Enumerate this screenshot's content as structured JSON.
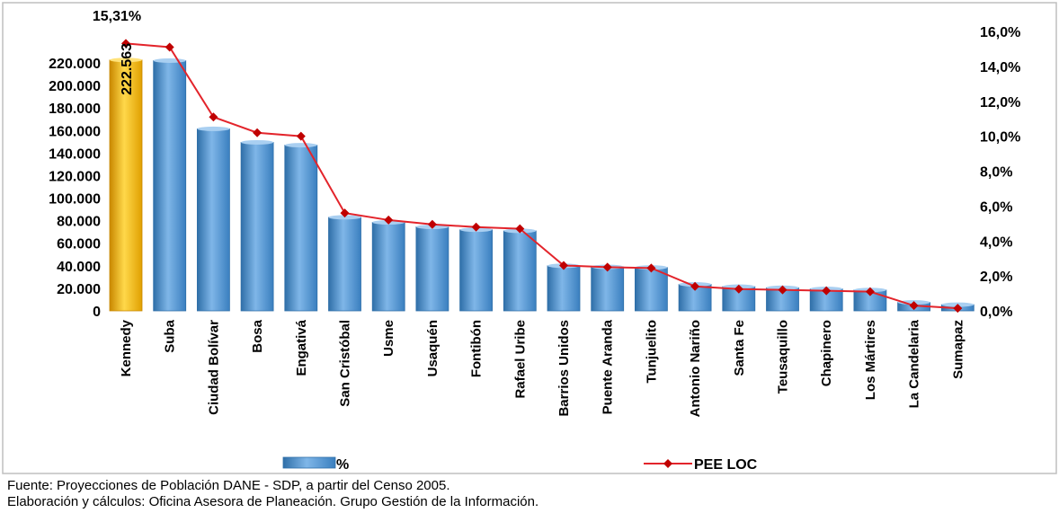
{
  "chart_data": {
    "type": "bar",
    "categories": [
      "Kennedy",
      "Suba",
      "Ciudad Bolívar",
      "Bosa",
      "Engativá",
      "San Cristóbal",
      "Usme",
      "Usaquén",
      "Fontibón",
      "Rafael Uribe",
      "Barrios Unidos",
      "Puente Aranda",
      "Tunjuelito",
      "Antonio Nariño",
      "Santa Fe",
      "Teusaquillo",
      "Chapinero",
      "Los Mártires",
      "La Candelaria",
      "Sumapaz"
    ],
    "series": [
      {
        "name": "%",
        "axis": "left",
        "values": [
          222563,
          222000,
          161500,
          149500,
          147000,
          83000,
          78500,
          74500,
          72000,
          71000,
          40000,
          39000,
          38500,
          23500,
          21500,
          20500,
          19500,
          18500,
          7500,
          5500
        ]
      },
      {
        "name": "PEE LOC",
        "axis": "right",
        "values": [
          15.31,
          15.1,
          11.1,
          10.2,
          10.0,
          5.6,
          5.2,
          4.95,
          4.8,
          4.7,
          2.6,
          2.5,
          2.45,
          1.4,
          1.25,
          1.2,
          1.15,
          1.1,
          0.3,
          0.15
        ]
      }
    ],
    "ylim": [
      0,
      220000
    ],
    "y2lim": [
      0,
      16
    ],
    "yticks": [
      "0",
      "20.000",
      "40.000",
      "60.000",
      "80.000",
      "100.000",
      "120.000",
      "140.000",
      "160.000",
      "180.000",
      "200.000",
      "220.000"
    ],
    "y2ticks": [
      "0,0%",
      "2,0%",
      "4,0%",
      "6,0%",
      "8,0%",
      "10,0%",
      "12,0%",
      "14,0%",
      "16,0%"
    ],
    "highlight": {
      "index": 0,
      "bar_label": "222.563",
      "line_label": "15,31%"
    },
    "legend_position": "bottom",
    "grid": false
  },
  "colors": {
    "bar": "#5b9bd5",
    "bar_dark": "#2f6fa8",
    "highlight_bar": "#ffc000",
    "highlight_dark": "#c98800",
    "line": "#e3242b",
    "marker": "#c00000"
  },
  "footnotes": {
    "line1": "Fuente: Proyecciones de Población DANE - SDP, a partir del Censo 2005.",
    "line2": "Elaboración y cálculos: Oficina Asesora de Planeación. Grupo Gestión de la Información."
  }
}
